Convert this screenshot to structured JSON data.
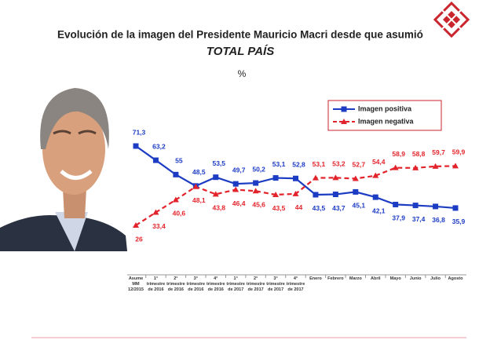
{
  "chart_data": {
    "type": "line",
    "title": "Evolución de la imagen del Presidente Mauricio Macri desde que asumió",
    "subtitle": "TOTAL PAÍS",
    "unit": "%",
    "categories": [
      "Asume\nMM\n12/2015",
      "1°\ntrimestre\nde 2016",
      "2°\ntrimestre\nde 2016",
      "3°\ntrimestre\nde 2016",
      "4°\ntrimestre\nde 2016",
      "1°\ntrimestre\nde 2017",
      "2°\ntrimestre\nde 2017",
      "3°\ntrimestre\nde 2017",
      "4°\ntrimestre\nde 2017",
      "Enero",
      "Febrero",
      "Marzo",
      "Abril",
      "Mayo",
      "Junio",
      "Julio",
      "Agosto"
    ],
    "series": [
      {
        "name": "Imagen positiva",
        "color": "#1c3cc4",
        "marker": "square",
        "dashed": false,
        "values": [
          71.3,
          63.2,
          55,
          48.5,
          53.5,
          49.7,
          50.2,
          53.1,
          52.8,
          43.5,
          43.7,
          45.1,
          42.1,
          37.9,
          37.4,
          36.8,
          35.9
        ],
        "value_labels": [
          "71,3",
          "63,2",
          "55",
          "48,5",
          "53,5",
          "49,7",
          "50,2",
          "53,1",
          "52,8",
          "43,5",
          "43,7",
          "45,1",
          "42,1",
          "37,9",
          "37,4",
          "36,8",
          "35,9"
        ]
      },
      {
        "name": "Imagen negativa",
        "color": "#e3232b",
        "marker": "triangle",
        "dashed": true,
        "values": [
          26,
          33.4,
          40.6,
          48.1,
          43.8,
          46.4,
          45.6,
          43.5,
          44,
          53.1,
          53.2,
          52.7,
          54.4,
          58.9,
          58.8,
          59.7,
          59.9
        ],
        "value_labels": [
          "26",
          "33,4",
          "40,6",
          "48,1",
          "43,8",
          "46,4",
          "45,6",
          "43,5",
          "44",
          "53,1",
          "53,2",
          "52,7",
          "54,4",
          "58,9",
          "58,8",
          "59,7",
          "59,9"
        ]
      }
    ]
  }
}
